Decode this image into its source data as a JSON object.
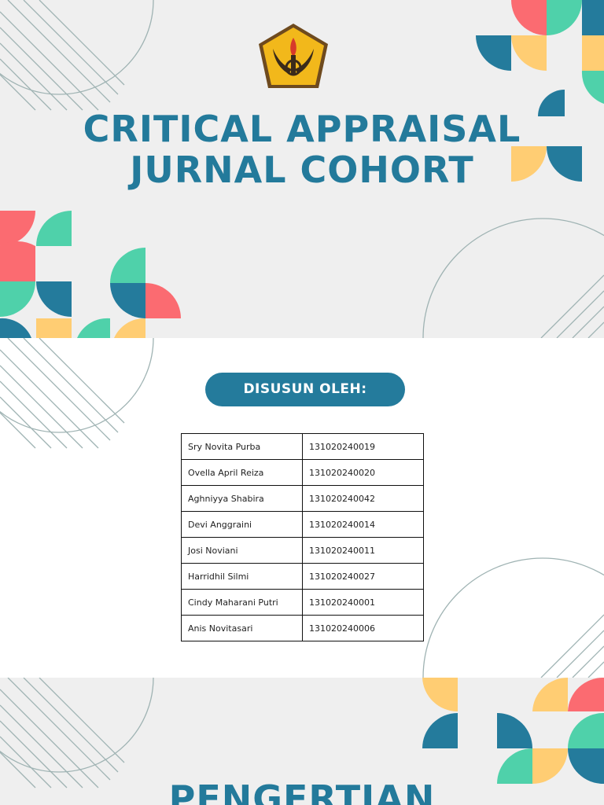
{
  "slide1": {
    "title_line1": "CRITICAL APPRAISAL",
    "title_line2": "JURNAL COHORT"
  },
  "slide2": {
    "heading": "DISUSUN OLEH:",
    "members": [
      {
        "name": "Sry Novita Purba",
        "id": "131020240019"
      },
      {
        "name": "Ovella April Reiza",
        "id": "131020240020"
      },
      {
        "name": "Aghniyya Shabira",
        "id": "131020240042"
      },
      {
        "name": "Devi Anggraini",
        "id": "131020240014"
      },
      {
        "name": "Josi Noviani",
        "id": "131020240011"
      },
      {
        "name": "Harridhil Silmi",
        "id": "131020240027"
      },
      {
        "name": "Cindy Maharani Putri",
        "id": "131020240001"
      },
      {
        "name": "Anis Novitasari",
        "id": "131020240006"
      }
    ]
  },
  "slide3": {
    "title": "PENGERTIAN"
  },
  "colors": {
    "title_blue": "#237a9b",
    "teal": "#247b9c",
    "mint": "#4fd1aa",
    "coral": "#fb6b71",
    "yellow": "#ffcd73",
    "background": "#efefef"
  },
  "icons": [
    "university-logo"
  ]
}
